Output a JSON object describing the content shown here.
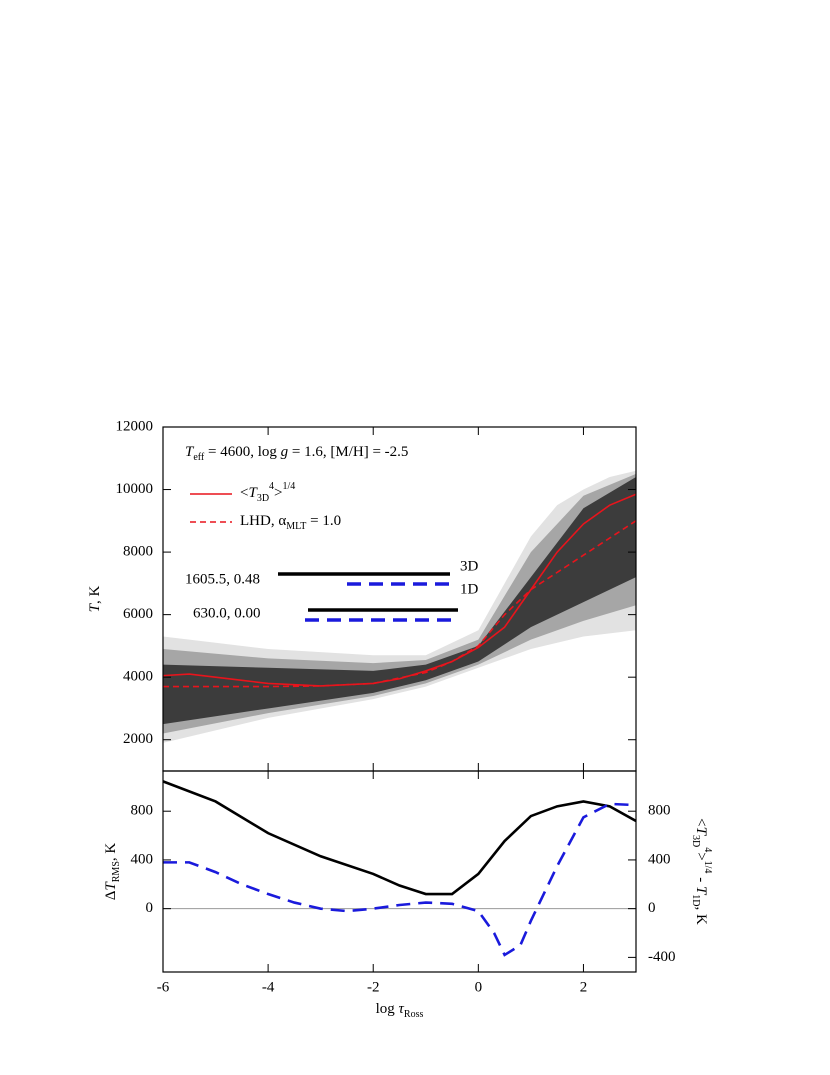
{
  "chart_data": [
    {
      "type": "line",
      "title": [
        {
          "text": "T",
          "italic": true
        },
        {
          "text": "eff",
          "sub": true
        },
        {
          "text": " = 4600, log "
        },
        {
          "text": "g",
          "italic": true
        },
        {
          "text": " = 1.6, [M/H] = -2.5"
        }
      ],
      "y_label": [
        {
          "text": "T",
          "italic": true
        },
        {
          "text": ", K"
        }
      ],
      "xlim": [
        -6,
        3
      ],
      "xticks": [
        -6,
        -4,
        -2,
        0,
        2
      ],
      "ylim": [
        1000,
        12000
      ],
      "yticks": [
        2000,
        4000,
        6000,
        8000,
        10000,
        12000
      ],
      "bands": [
        {
          "color": "#e2e2e2",
          "x": [
            -6,
            -5,
            -4,
            -3,
            -2,
            -1,
            0,
            0.5,
            1,
            1.5,
            2,
            2.5,
            3
          ],
          "low": [
            1900,
            2300,
            2700,
            3000,
            3300,
            3700,
            4300,
            4600,
            4900,
            5100,
            5300,
            5400,
            5500
          ],
          "high": [
            5300,
            5100,
            4900,
            4800,
            4700,
            4700,
            5500,
            7000,
            8500,
            9500,
            10000,
            10400,
            10600
          ]
        },
        {
          "color": "#a6a6a6",
          "x": [
            -6,
            -4,
            -2,
            -1,
            0,
            1,
            2,
            3
          ],
          "low": [
            2200,
            2850,
            3400,
            3800,
            4400,
            5200,
            5800,
            6300
          ],
          "high": [
            4900,
            4600,
            4450,
            4550,
            5200,
            8000,
            9800,
            10500
          ]
        },
        {
          "color": "#3c3c3c",
          "x": [
            -6,
            -4,
            -2,
            -1,
            0,
            1,
            2,
            3
          ],
          "low": [
            2500,
            3000,
            3500,
            3900,
            4500,
            5600,
            6400,
            7200
          ],
          "high": [
            4400,
            4300,
            4200,
            4400,
            5000,
            7200,
            9400,
            10400
          ]
        }
      ],
      "series": [
        {
          "name": [
            {
              "text": "<"
            },
            {
              "text": "T",
              "italic": true
            },
            {
              "text": "3D",
              "sub": true
            },
            {
              "text": "4",
              "sup": true
            },
            {
              "text": ">"
            },
            {
              "text": "1/4",
              "sup": true
            }
          ],
          "color": "#e8141c",
          "dashed": false,
          "x": [
            -6,
            -5.5,
            -5,
            -4.5,
            -4,
            -3,
            -2,
            -1.5,
            -1,
            -0.5,
            0,
            0.5,
            1,
            1.5,
            2,
            2.5,
            3
          ],
          "values": [
            4050,
            4100,
            4000,
            3900,
            3800,
            3720,
            3800,
            3950,
            4200,
            4500,
            4950,
            5600,
            6800,
            8000,
            8900,
            9500,
            9850
          ]
        },
        {
          "name": [
            {
              "text": "LHD, "
            },
            {
              "text": "α"
            },
            {
              "text": "MLT",
              "sub": true
            },
            {
              "text": " = 1.0"
            }
          ],
          "color": "#e8141c",
          "dashed": true,
          "x": [
            -6,
            -5,
            -4,
            -3,
            -2,
            -1,
            -0.5,
            0,
            0.5,
            1,
            2,
            3
          ],
          "values": [
            3700,
            3700,
            3700,
            3720,
            3800,
            4150,
            4500,
            5000,
            6000,
            6800,
            7900,
            9000
          ]
        }
      ],
      "annotations": [
        "1605.5, 0.48",
        "630.0, 0.00"
      ],
      "marker_legend": [
        {
          "name": "3D",
          "color": "#000000"
        },
        {
          "name": "1D",
          "color": "#1a1adc"
        }
      ]
    },
    {
      "type": "line",
      "x_label": [
        {
          "text": "log "
        },
        {
          "text": "τ",
          "italic": true
        },
        {
          "text": "Ross",
          "sub": true
        }
      ],
      "y_label": [
        {
          "text": "Δ"
        },
        {
          "text": "T",
          "italic": true
        },
        {
          "text": "RMS",
          "sub": true
        },
        {
          "text": ", K"
        }
      ],
      "y2_label": [
        {
          "text": "<"
        },
        {
          "text": "T",
          "italic": true
        },
        {
          "text": "3D",
          "sub": true
        },
        {
          "text": "4",
          "sup": true
        },
        {
          "text": ">"
        },
        {
          "text": "1/4",
          "sup": true
        },
        {
          "text": " - "
        },
        {
          "text": "T",
          "italic": true
        },
        {
          "text": "1D",
          "sub": true
        },
        {
          "text": ", K"
        }
      ],
      "y2_color": "#1a1adc",
      "xlim": [
        -6,
        3
      ],
      "xticks": [
        -6,
        -4,
        -2,
        0,
        2
      ],
      "ylim": [
        -520,
        1130
      ],
      "yticks": [
        0,
        400,
        800
      ],
      "y2lim": [
        -520,
        1130
      ],
      "y2ticks": [
        -400,
        0,
        400,
        800
      ],
      "series": [
        {
          "color": "#000000",
          "dashed": false,
          "x": [
            -6,
            -5,
            -4,
            -3,
            -2,
            -1.5,
            -1,
            -0.5,
            0,
            0.5,
            1,
            1.5,
            2,
            2.5,
            3
          ],
          "values": [
            1045,
            880,
            620,
            430,
            285,
            190,
            120,
            120,
            285,
            555,
            760,
            840,
            880,
            840,
            720
          ]
        },
        {
          "color": "#1a1adc",
          "dashed": true,
          "axis": "y2",
          "x": [
            -6,
            -5.5,
            -5,
            -4.5,
            -4,
            -3.5,
            -3,
            -2.5,
            -2,
            -1.5,
            -1,
            -0.5,
            0,
            0.3,
            0.5,
            0.8,
            1,
            1.5,
            2,
            2.5,
            3
          ],
          "values": [
            380,
            380,
            300,
            200,
            120,
            50,
            0,
            -20,
            0,
            30,
            50,
            40,
            -20,
            -200,
            -380,
            -300,
            -100,
            350,
            750,
            860,
            850
          ]
        }
      ]
    }
  ]
}
